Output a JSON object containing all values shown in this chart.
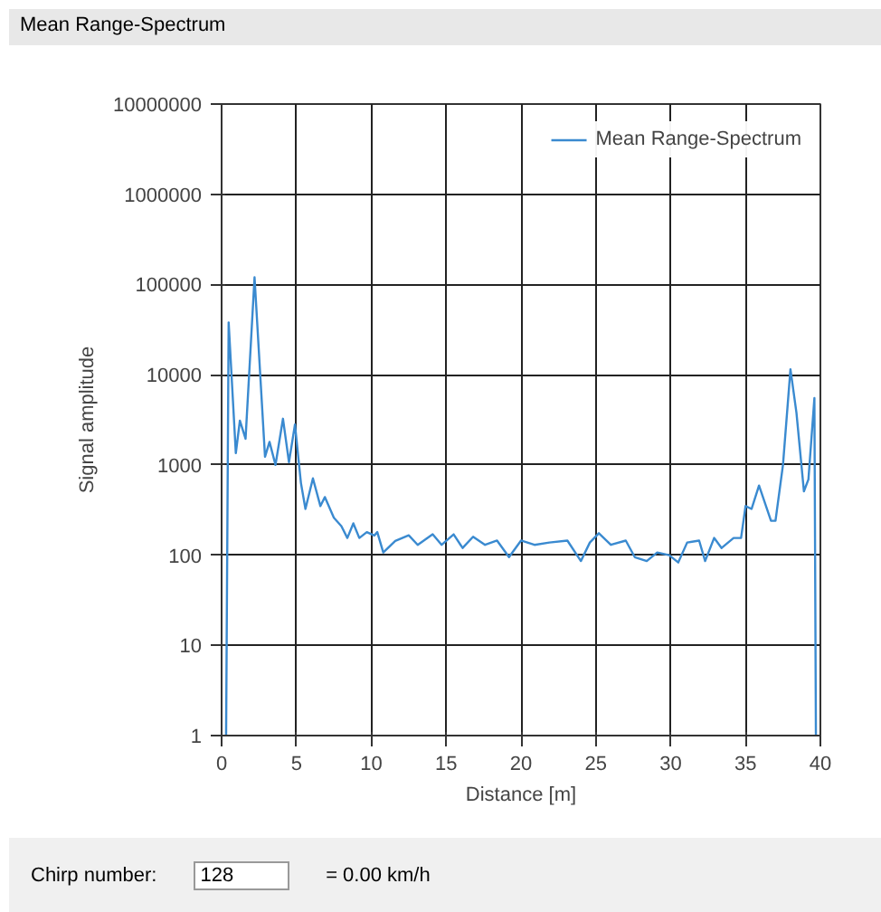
{
  "chart_data": {
    "type": "line",
    "title": "Mean Range-Spectrum",
    "xlabel": "Distance [m]",
    "ylabel": "Signal amplitude",
    "series": [
      {
        "name": "Mean Range-Spectrum",
        "color": "#3a8ad0",
        "x": [
          0.3,
          0.47,
          0.95,
          1.22,
          1.6,
          2.2,
          2.9,
          3.2,
          3.6,
          4.1,
          4.5,
          4.9,
          5.3,
          5.6,
          6.1,
          6.6,
          6.9,
          7.5,
          8.0,
          8.4,
          8.8,
          9.2,
          9.7,
          10.2,
          10.4,
          10.8,
          11.6,
          12.5,
          13.1,
          14.1,
          14.7,
          15.5,
          16.1,
          16.8,
          17.6,
          18.4,
          19.2,
          20.0,
          20.9,
          21.9,
          23.1,
          24.0,
          24.6,
          25.2,
          26.0,
          27.0,
          27.6,
          28.4,
          29.1,
          29.9,
          30.5,
          31.1,
          31.9,
          32.3,
          32.9,
          33.4,
          34.2,
          34.7,
          35.0,
          35.4,
          35.9,
          36.7,
          37.0,
          37.5,
          38.0,
          38.4,
          38.9,
          39.2,
          39.6,
          39.7
        ],
        "values": [
          1,
          38000,
          1350,
          3100,
          1950,
          120000,
          1230,
          1800,
          1000,
          3250,
          1070,
          2800,
          630,
          325,
          710,
          350,
          440,
          260,
          210,
          155,
          225,
          155,
          180,
          165,
          180,
          107,
          144,
          166,
          130,
          170,
          130,
          170,
          120,
          160,
          130,
          145,
          95,
          145,
          130,
          138,
          145,
          86,
          138,
          175,
          130,
          145,
          95,
          86,
          107,
          100,
          83,
          138,
          145,
          86,
          155,
          120,
          155,
          155,
          350,
          325,
          590,
          240,
          240,
          1000,
          11500,
          3800,
          510,
          690,
          5500,
          1
        ]
      }
    ],
    "xlim": [
      0,
      40
    ],
    "xticks": [
      0,
      5,
      10,
      15,
      20,
      25,
      30,
      35,
      40
    ],
    "ylim": [
      1,
      10000000
    ],
    "yticks": [
      1,
      10,
      100,
      1000,
      10000,
      100000,
      1000000,
      10000000
    ],
    "log": "y",
    "grid": true,
    "legend": "top right",
    "line_style": "solid",
    "marker": "none",
    "annotations": [
      "Chirp number:",
      "128",
      "= 0.00 km/h"
    ]
  }
}
